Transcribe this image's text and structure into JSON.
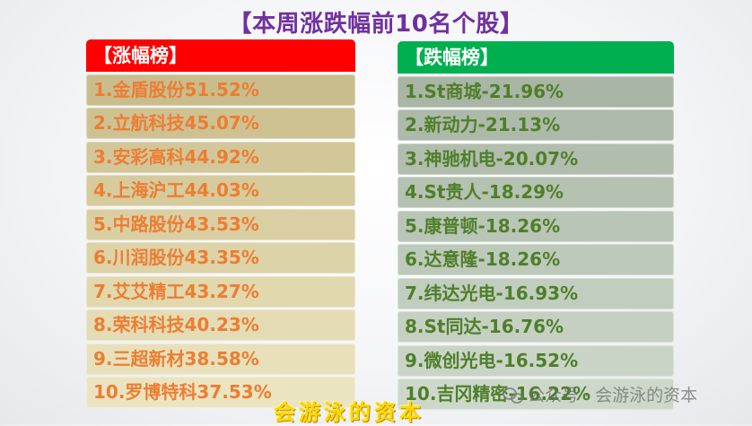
{
  "title": "【本周涨跌幅前10名个股】",
  "gainers": {
    "header": "【涨幅榜】",
    "header_color": "#ff0000",
    "text_color": "#ed7d31",
    "items": [
      "1.金盾股份51.52%",
      "2.立航科技45.07%",
      "3.安彩高科44.92%",
      "4.上海沪工44.03%",
      "5.中路股份43.53%",
      "6.川润股份43.35%",
      "7.艾艾精工43.27%",
      "8.荣科科技40.23%",
      "9.三超新材38.58%",
      "10.罗博特科37.53%"
    ]
  },
  "losers": {
    "header": "【跌幅榜】",
    "header_color": "#00b050",
    "text_color": "#4f7f2a",
    "items": [
      "1.St商城-21.96%",
      "2.新动力-21.13%",
      "3.神驰机电-20.07%",
      "4.St贵人-18.29%",
      "5.康普顿-18.26%",
      "6.达意隆-18.26%",
      "7.纬达光电-16.93%",
      "8.St同达-16.76%",
      "9.微创光电-16.52%",
      "10.吉冈精密-16.22%"
    ]
  },
  "footer": "会游泳的资本",
  "watermark": {
    "icon": "wechat-icon",
    "text": "公众号 · 会游泳的资本"
  }
}
